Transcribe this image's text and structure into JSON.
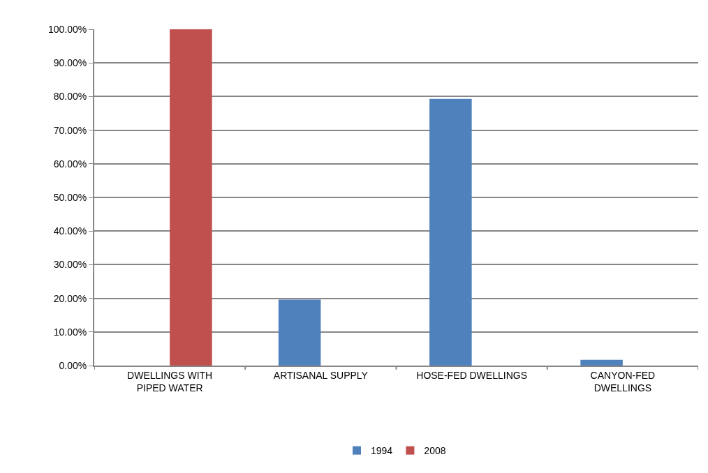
{
  "chart_data": {
    "type": "bar",
    "categories": [
      "DWELLINGS WITH PIPED WATER",
      "ARTISANAL SUPPLY",
      "HOSE-FED DWELLINGS",
      "CANYON-FED DWELLINGS"
    ],
    "series": [
      {
        "name": "1994",
        "color": "#4f81bd",
        "values": [
          null,
          19.6,
          79.3,
          1.7
        ]
      },
      {
        "name": "2008",
        "color": "#c0504d",
        "values": [
          100,
          null,
          null,
          null
        ]
      }
    ],
    "ylim": [
      0,
      100
    ],
    "yticks": [
      {
        "value": 0,
        "label": "0.00%"
      },
      {
        "value": 10,
        "label": "10.00%"
      },
      {
        "value": 20,
        "label": "20.00%"
      },
      {
        "value": 30,
        "label": "30.00%"
      },
      {
        "value": 40,
        "label": "40.00%"
      },
      {
        "value": 50,
        "label": "50.00%"
      },
      {
        "value": 60,
        "label": "60.00%"
      },
      {
        "value": 70,
        "label": "70.00%"
      },
      {
        "value": 80,
        "label": "80.00%"
      },
      {
        "value": 90,
        "label": "90.00%"
      },
      {
        "value": 100,
        "label": "100.00%"
      }
    ],
    "grid": "y",
    "legend": "bottom"
  }
}
